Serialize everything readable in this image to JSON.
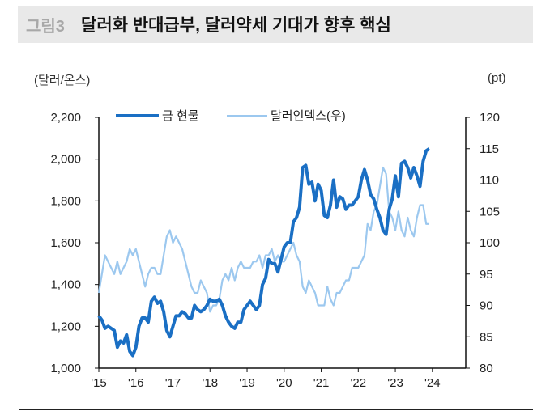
{
  "header": {
    "figure_label": "그림3",
    "title": "달러화 반대급부, 달러약세 기대가 향후 핵심"
  },
  "chart_data": {
    "type": "line",
    "title": "달러화 반대급부, 달러약세 기대가 향후 핵심",
    "ylabel": "(달러/온스)",
    "y2label": "(pt)",
    "ylim": [
      1000,
      2200
    ],
    "y2lim": [
      80,
      120
    ],
    "xlim": [
      2015,
      2024.9
    ],
    "yticks": [
      "1,000",
      "1,200",
      "1,400",
      "1,600",
      "1,800",
      "2,000",
      "2,200"
    ],
    "y2ticks": [
      "80",
      "85",
      "90",
      "95",
      "100",
      "105",
      "110",
      "115",
      "120"
    ],
    "xticks": [
      "'15",
      "'16",
      "'17",
      "'18",
      "'19",
      "'20",
      "'21",
      "'22",
      "'23",
      "'24"
    ],
    "legend_placement": "top-left",
    "grid": false,
    "x_resolution": "monthly, Jan 2015 - Dec 2023",
    "series": [
      {
        "name": "금 현물",
        "axis": "left",
        "color": "#1a6fc4",
        "values": [
          1250,
          1230,
          1190,
          1200,
          1190,
          1180,
          1100,
          1130,
          1120,
          1160,
          1080,
          1060,
          1100,
          1200,
          1240,
          1240,
          1220,
          1320,
          1340,
          1310,
          1320,
          1270,
          1180,
          1150,
          1200,
          1250,
          1250,
          1270,
          1260,
          1240,
          1240,
          1300,
          1280,
          1270,
          1280,
          1300,
          1330,
          1320,
          1320,
          1330,
          1300,
          1250,
          1220,
          1200,
          1190,
          1220,
          1220,
          1280,
          1300,
          1320,
          1300,
          1280,
          1300,
          1400,
          1430,
          1520,
          1500,
          1500,
          1460,
          1520,
          1580,
          1600,
          1600,
          1700,
          1720,
          1770,
          1960,
          1970,
          1880,
          1890,
          1800,
          1880,
          1850,
          1730,
          1720,
          1780,
          1900,
          1770,
          1820,
          1810,
          1760,
          1780,
          1780,
          1800,
          1820,
          1900,
          1950,
          1900,
          1830,
          1810,
          1760,
          1720,
          1660,
          1640,
          1760,
          1810,
          1920,
          1820,
          1980,
          1990,
          1960,
          1910,
          1960,
          1920,
          1870,
          1990,
          2040,
          2050
        ]
      },
      {
        "name": "달러인덱스(우)",
        "axis": "right",
        "color": "#9cc8ef",
        "values": [
          92,
          95,
          98,
          97,
          96,
          95,
          97,
          95,
          96,
          97,
          99,
          98,
          99,
          97,
          95,
          93,
          95,
          96,
          96,
          95,
          95,
          98,
          101,
          102,
          100,
          101,
          100,
          99,
          97,
          95,
          93,
          92,
          92,
          94,
          93,
          92,
          89,
          90,
          90,
          91,
          94,
          95,
          94,
          96,
          94,
          96,
          97,
          96,
          96,
          96,
          97,
          97,
          98,
          96,
          98,
          98,
          99,
          97,
          98,
          97,
          97,
          98,
          99,
          100,
          98,
          97,
          93,
          92,
          94,
          93,
          92,
          90,
          90,
          90,
          93,
          91,
          90,
          92,
          92,
          93,
          94,
          94,
          96,
          96,
          96,
          97,
          98,
          103,
          102,
          105,
          106,
          109,
          112,
          111,
          105,
          104,
          102,
          105,
          102,
          101,
          104,
          102,
          101,
          104,
          106,
          106,
          103,
          103
        ]
      }
    ]
  }
}
